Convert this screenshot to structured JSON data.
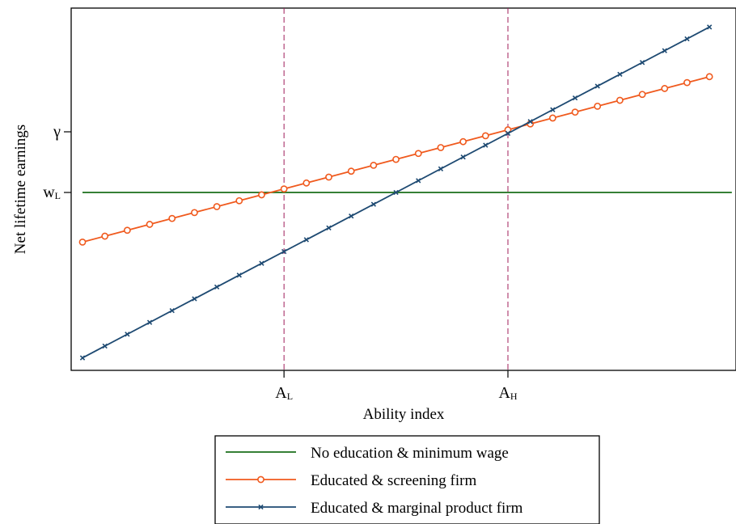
{
  "chart_data": {
    "type": "line",
    "title": "",
    "xlabel": "Ability index",
    "ylabel": "Net lifetime earnings",
    "xlim": [
      0,
      28.5
    ],
    "ylim": [
      -6.5,
      25.5
    ],
    "x_ticks": [
      {
        "value": 9,
        "main": "A",
        "sub": "L"
      },
      {
        "value": 19,
        "main": "A",
        "sub": "H"
      }
    ],
    "y_ticks": [
      {
        "value": 10,
        "main": "w",
        "sub": "L"
      },
      {
        "value": 15.5,
        "main": "γ",
        "sub": ""
      }
    ],
    "reference_lines": [
      {
        "axis": "x",
        "value": 9,
        "color": "#a01c5a",
        "style": "dashed"
      },
      {
        "axis": "x",
        "value": 19,
        "color": "#a01c5a",
        "style": "dashed"
      }
    ],
    "series": [
      {
        "name": "No education & minimum wage",
        "color": "#1a6e1a",
        "marker": "none",
        "x": [
          0,
          29
        ],
        "y": [
          10,
          10
        ]
      },
      {
        "name": "Educated & screening firm",
        "color": "#f05a1e",
        "marker": "circle",
        "x": [
          0,
          28
        ],
        "y": [
          5.5,
          20.5
        ]
      },
      {
        "name": "Educated & marginal product firm",
        "color": "#1e4a72",
        "marker": "x",
        "x": [
          0,
          28
        ],
        "y": [
          -5,
          25
        ]
      }
    ],
    "marker_count": 29,
    "grid": false,
    "legend_position": "bottom"
  }
}
